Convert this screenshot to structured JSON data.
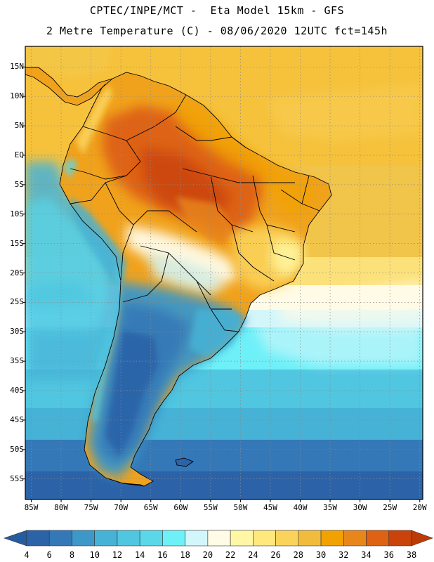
{
  "header": {
    "line1": "CPTEC/INPE/MCT -  Eta Model 15km - GFS",
    "line2": "2 Metre Temperature (C) - 08/06/2020 12UTC fct=145h"
  },
  "map": {
    "variable": "2 Metre Temperature",
    "units": "C",
    "lon_range": [
      -86,
      -19.5
    ],
    "lat_range": [
      18.5,
      -58.5
    ],
    "lat_ticks": [
      "15N",
      "10N",
      "5N",
      "EQ",
      "5S",
      "10S",
      "15S",
      "20S",
      "25S",
      "30S",
      "35S",
      "40S",
      "45S",
      "50S",
      "55S"
    ],
    "lat_values": [
      15,
      10,
      5,
      0,
      -5,
      -10,
      -15,
      -20,
      -25,
      -30,
      -35,
      -40,
      -45,
      -50,
      -55
    ],
    "lon_ticks": [
      "85W",
      "80W",
      "75W",
      "70W",
      "65W",
      "60W",
      "55W",
      "50W",
      "45W",
      "40W",
      "35W",
      "30W",
      "25W",
      "20W"
    ],
    "lon_values": [
      -85,
      -80,
      -75,
      -70,
      -65,
      -60,
      -55,
      -50,
      -45,
      -40,
      -35,
      -30,
      -25,
      -20
    ]
  },
  "colorbar": {
    "labels": [
      "4",
      "6",
      "8",
      "10",
      "12",
      "14",
      "16",
      "18",
      "20",
      "22",
      "24",
      "26",
      "28",
      "30",
      "32",
      "34",
      "36",
      "38"
    ],
    "colors": [
      "#2c63a8",
      "#3478b7",
      "#3c98c8",
      "#46b2d6",
      "#50c6e0",
      "#5ad8ea",
      "#6ef0f8",
      "#d3f6fb",
      "#fffbe6",
      "#fff7a3",
      "#ffe87c",
      "#fad35a",
      "#f1bc3e",
      "#f2a200",
      "#e8861c",
      "#de6114",
      "#c9430a"
    ],
    "under_color": "#275ba0",
    "over_color": "#bd3b06"
  }
}
